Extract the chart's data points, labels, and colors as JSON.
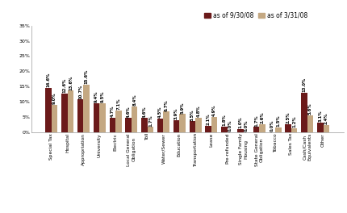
{
  "categories": [
    "Special Tax",
    "Hospital",
    "Appropriation",
    "University",
    "Electric",
    "Local General\nObligation",
    "Toll",
    "Water/Sewer",
    "Education",
    "Transportation",
    "Lease",
    "Pre-refunded",
    "Single Family\nHousing",
    "State General\nObligation",
    "Tobacco",
    "Sales Tax",
    "Cash/Cash\nEquivalents",
    "Other"
  ],
  "series1_label": "as of 9/30/08",
  "series2_label": "as of 3/31/08",
  "series1_values": [
    14.6,
    12.6,
    10.7,
    9.4,
    4.7,
    4.6,
    4.6,
    4.5,
    3.9,
    3.5,
    2.1,
    1.8,
    1.0,
    1.7,
    0.0,
    2.5,
    13.0,
    3.1
  ],
  "series2_values": [
    9.0,
    13.6,
    15.6,
    9.5,
    7.1,
    8.4,
    1.7,
    6.7,
    5.9,
    4.8,
    4.9,
    0.0,
    0.0,
    2.6,
    1.5,
    1.2,
    5.6,
    2.4
  ],
  "color1": "#6B1A1A",
  "color2": "#C4A882",
  "ylim": [
    0,
    35
  ],
  "yticks": [
    0,
    5,
    10,
    15,
    20,
    25,
    30,
    35
  ],
  "ytick_labels": [
    "0%",
    "5%",
    "10%",
    "15%",
    "20%",
    "25%",
    "30%",
    "35%"
  ],
  "bar_width": 0.38,
  "label_fontsize": 3.8,
  "tick_fontsize": 4.5,
  "xtick_fontsize": 4.2,
  "legend_fontsize": 5.5,
  "background_color": "#FFFFFF"
}
